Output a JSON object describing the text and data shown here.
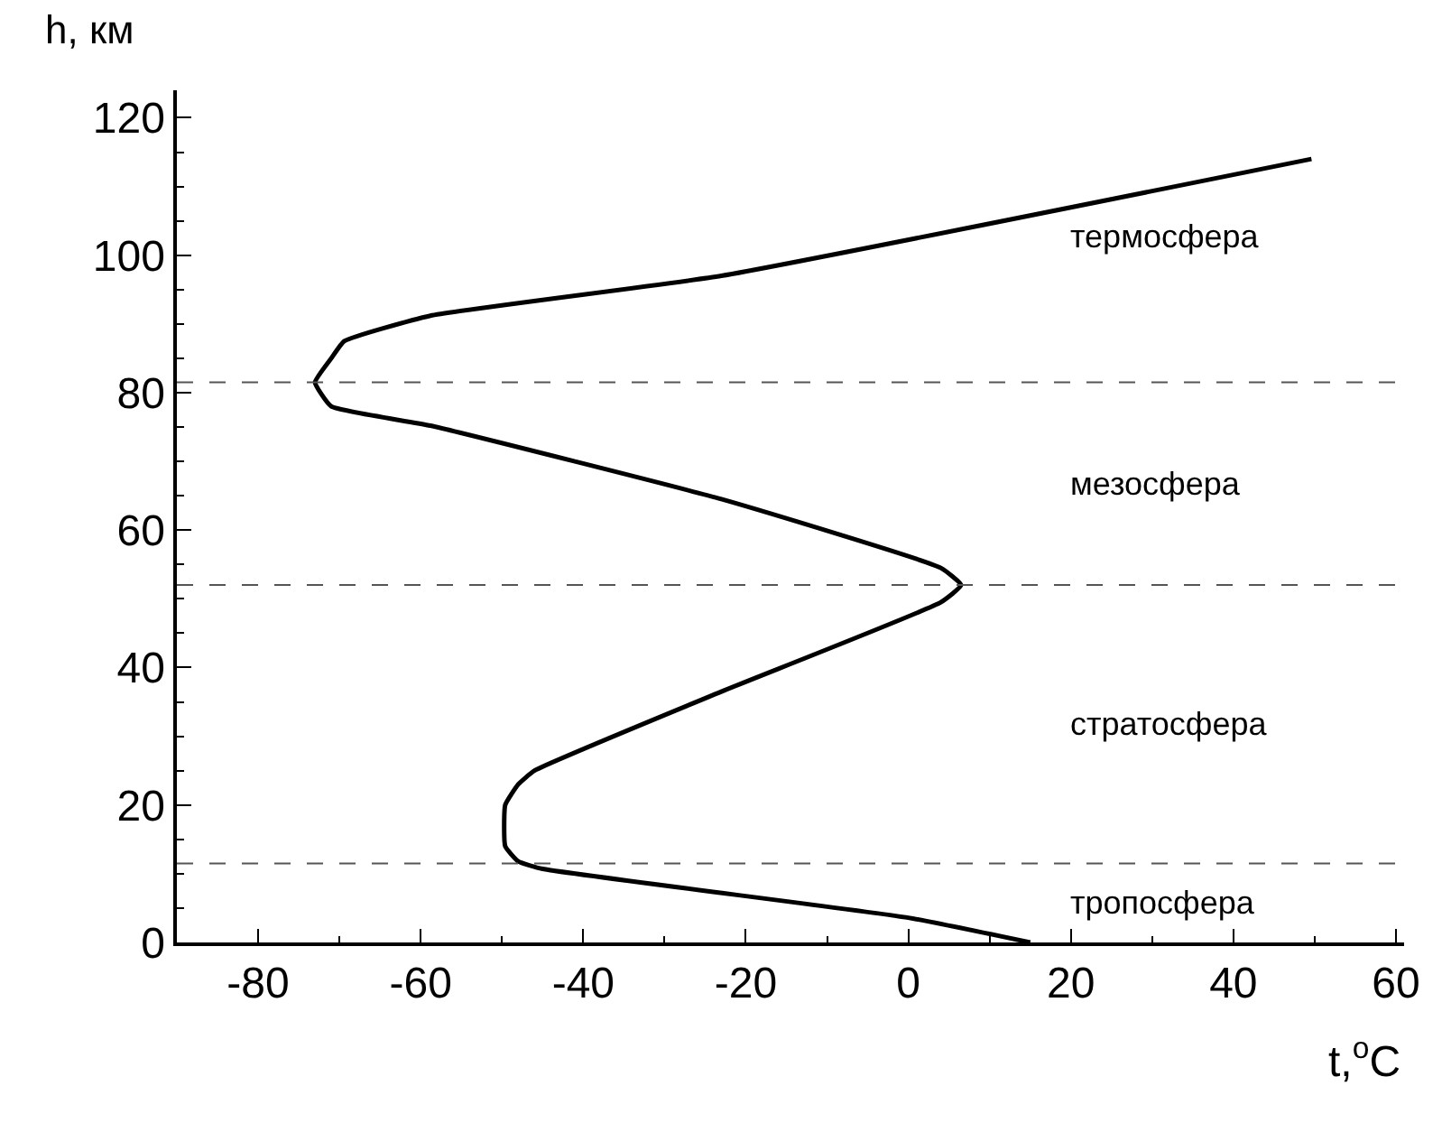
{
  "chart_data": {
    "type": "line",
    "xlabel": "t,$^{o}$C",
    "ylabel": "h, км",
    "x": [
      15,
      0,
      -45,
      -48,
      -49.6,
      -49.6,
      -48,
      -46,
      -23,
      4,
      6.5,
      4,
      -23,
      -58.8,
      -71,
      -73,
      -71,
      -69.4,
      -58.8,
      -23,
      49.6
    ],
    "series": [
      {
        "color": "#000000",
        "values": [
          0,
          3.6,
          10.7,
          11.8,
          14,
          20,
          23,
          25,
          36.5,
          49.5,
          52,
          54.5,
          64.5,
          75.2,
          78,
          81.5,
          85,
          87.5,
          91.2,
          97,
          114
        ]
      }
    ],
    "xlim": [
      -90,
      61
    ],
    "xticks": [
      -80,
      -60,
      -40,
      -20,
      0,
      20,
      40,
      60
    ],
    "ylim": [
      0,
      124
    ],
    "yticks": [
      0,
      20,
      40,
      60,
      80,
      100,
      120
    ],
    "marker": "none",
    "line_style": "solid",
    "ref_lines": [
      {
        "axis": "y",
        "value": 11.5,
        "label": null,
        "color": "#555555",
        "line_style": "dashed"
      },
      {
        "axis": "y",
        "value": 52,
        "label": null,
        "color": "#555555",
        "line_style": "dashed"
      },
      {
        "axis": "y",
        "value": 81.5,
        "label": null,
        "color": "#555555",
        "line_style": "dashed"
      }
    ],
    "annotations": [
      "термосфера",
      "мезосфера",
      "стратосфера",
      "тропосфера"
    ]
  }
}
